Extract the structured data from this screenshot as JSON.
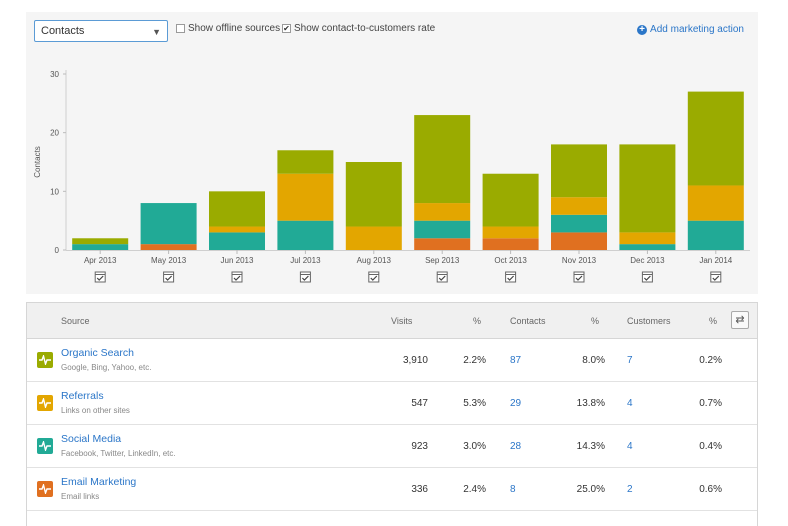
{
  "toolbar": {
    "metric_select": "Contacts",
    "show_offline_label": "Show offline sources",
    "show_offline_checked": false,
    "show_rate_label": "Show contact-to-customers rate",
    "show_rate_checked": true,
    "add_action_label": "Add marketing action"
  },
  "colors": {
    "organic": "#9aab00",
    "referrals": "#e3a600",
    "social": "#21aa96",
    "email": "#e07020"
  },
  "chart_data": {
    "type": "bar",
    "stacked": true,
    "ylabel": "Contacts",
    "ylim": [
      0,
      30
    ],
    "yticks": [
      0,
      10,
      20,
      30
    ],
    "grid": false,
    "categories": [
      "Apr 2013",
      "May 2013",
      "Jun 2013",
      "Jul 2013",
      "Aug 2013",
      "Sep 2013",
      "Oct 2013",
      "Nov 2013",
      "Dec 2013",
      "Jan 2014"
    ],
    "series": [
      {
        "key": "email",
        "color": "#e07020",
        "values": [
          0,
          1,
          0,
          0,
          0,
          2,
          2,
          3,
          0,
          0
        ]
      },
      {
        "key": "social",
        "color": "#21aa96",
        "values": [
          1,
          7,
          3,
          5,
          0,
          3,
          0,
          3,
          1,
          5
        ]
      },
      {
        "key": "referrals",
        "color": "#e3a600",
        "values": [
          0,
          0,
          1,
          8,
          4,
          3,
          2,
          3,
          2,
          6
        ]
      },
      {
        "key": "organic",
        "color": "#9aab00",
        "values": [
          1,
          0,
          6,
          4,
          11,
          15,
          9,
          9,
          15,
          16
        ]
      }
    ]
  },
  "table": {
    "headers": {
      "source": "Source",
      "visits": "Visits",
      "visits_pct": "%",
      "contacts": "Contacts",
      "contacts_pct": "%",
      "customers": "Customers",
      "customers_pct": "%"
    },
    "rows": [
      {
        "name": "Organic Search",
        "desc": "Google, Bing, Yahoo, etc.",
        "color": "#9aab00",
        "visits": "3,910",
        "visits_pct": "2.2%",
        "contacts": "87",
        "contacts_pct": "8.0%",
        "customers": "7",
        "customers_pct": "0.2%"
      },
      {
        "name": "Referrals",
        "desc": "Links on other sites",
        "color": "#e3a600",
        "visits": "547",
        "visits_pct": "5.3%",
        "contacts": "29",
        "contacts_pct": "13.8%",
        "customers": "4",
        "customers_pct": "0.7%"
      },
      {
        "name": "Social Media",
        "desc": "Facebook, Twitter, LinkedIn, etc.",
        "color": "#21aa96",
        "visits": "923",
        "visits_pct": "3.0%",
        "contacts": "28",
        "contacts_pct": "14.3%",
        "customers": "4",
        "customers_pct": "0.4%"
      },
      {
        "name": "Email Marketing",
        "desc": "Email links",
        "color": "#e07020",
        "visits": "336",
        "visits_pct": "2.4%",
        "contacts": "8",
        "contacts_pct": "25.0%",
        "customers": "2",
        "customers_pct": "0.6%"
      }
    ]
  }
}
